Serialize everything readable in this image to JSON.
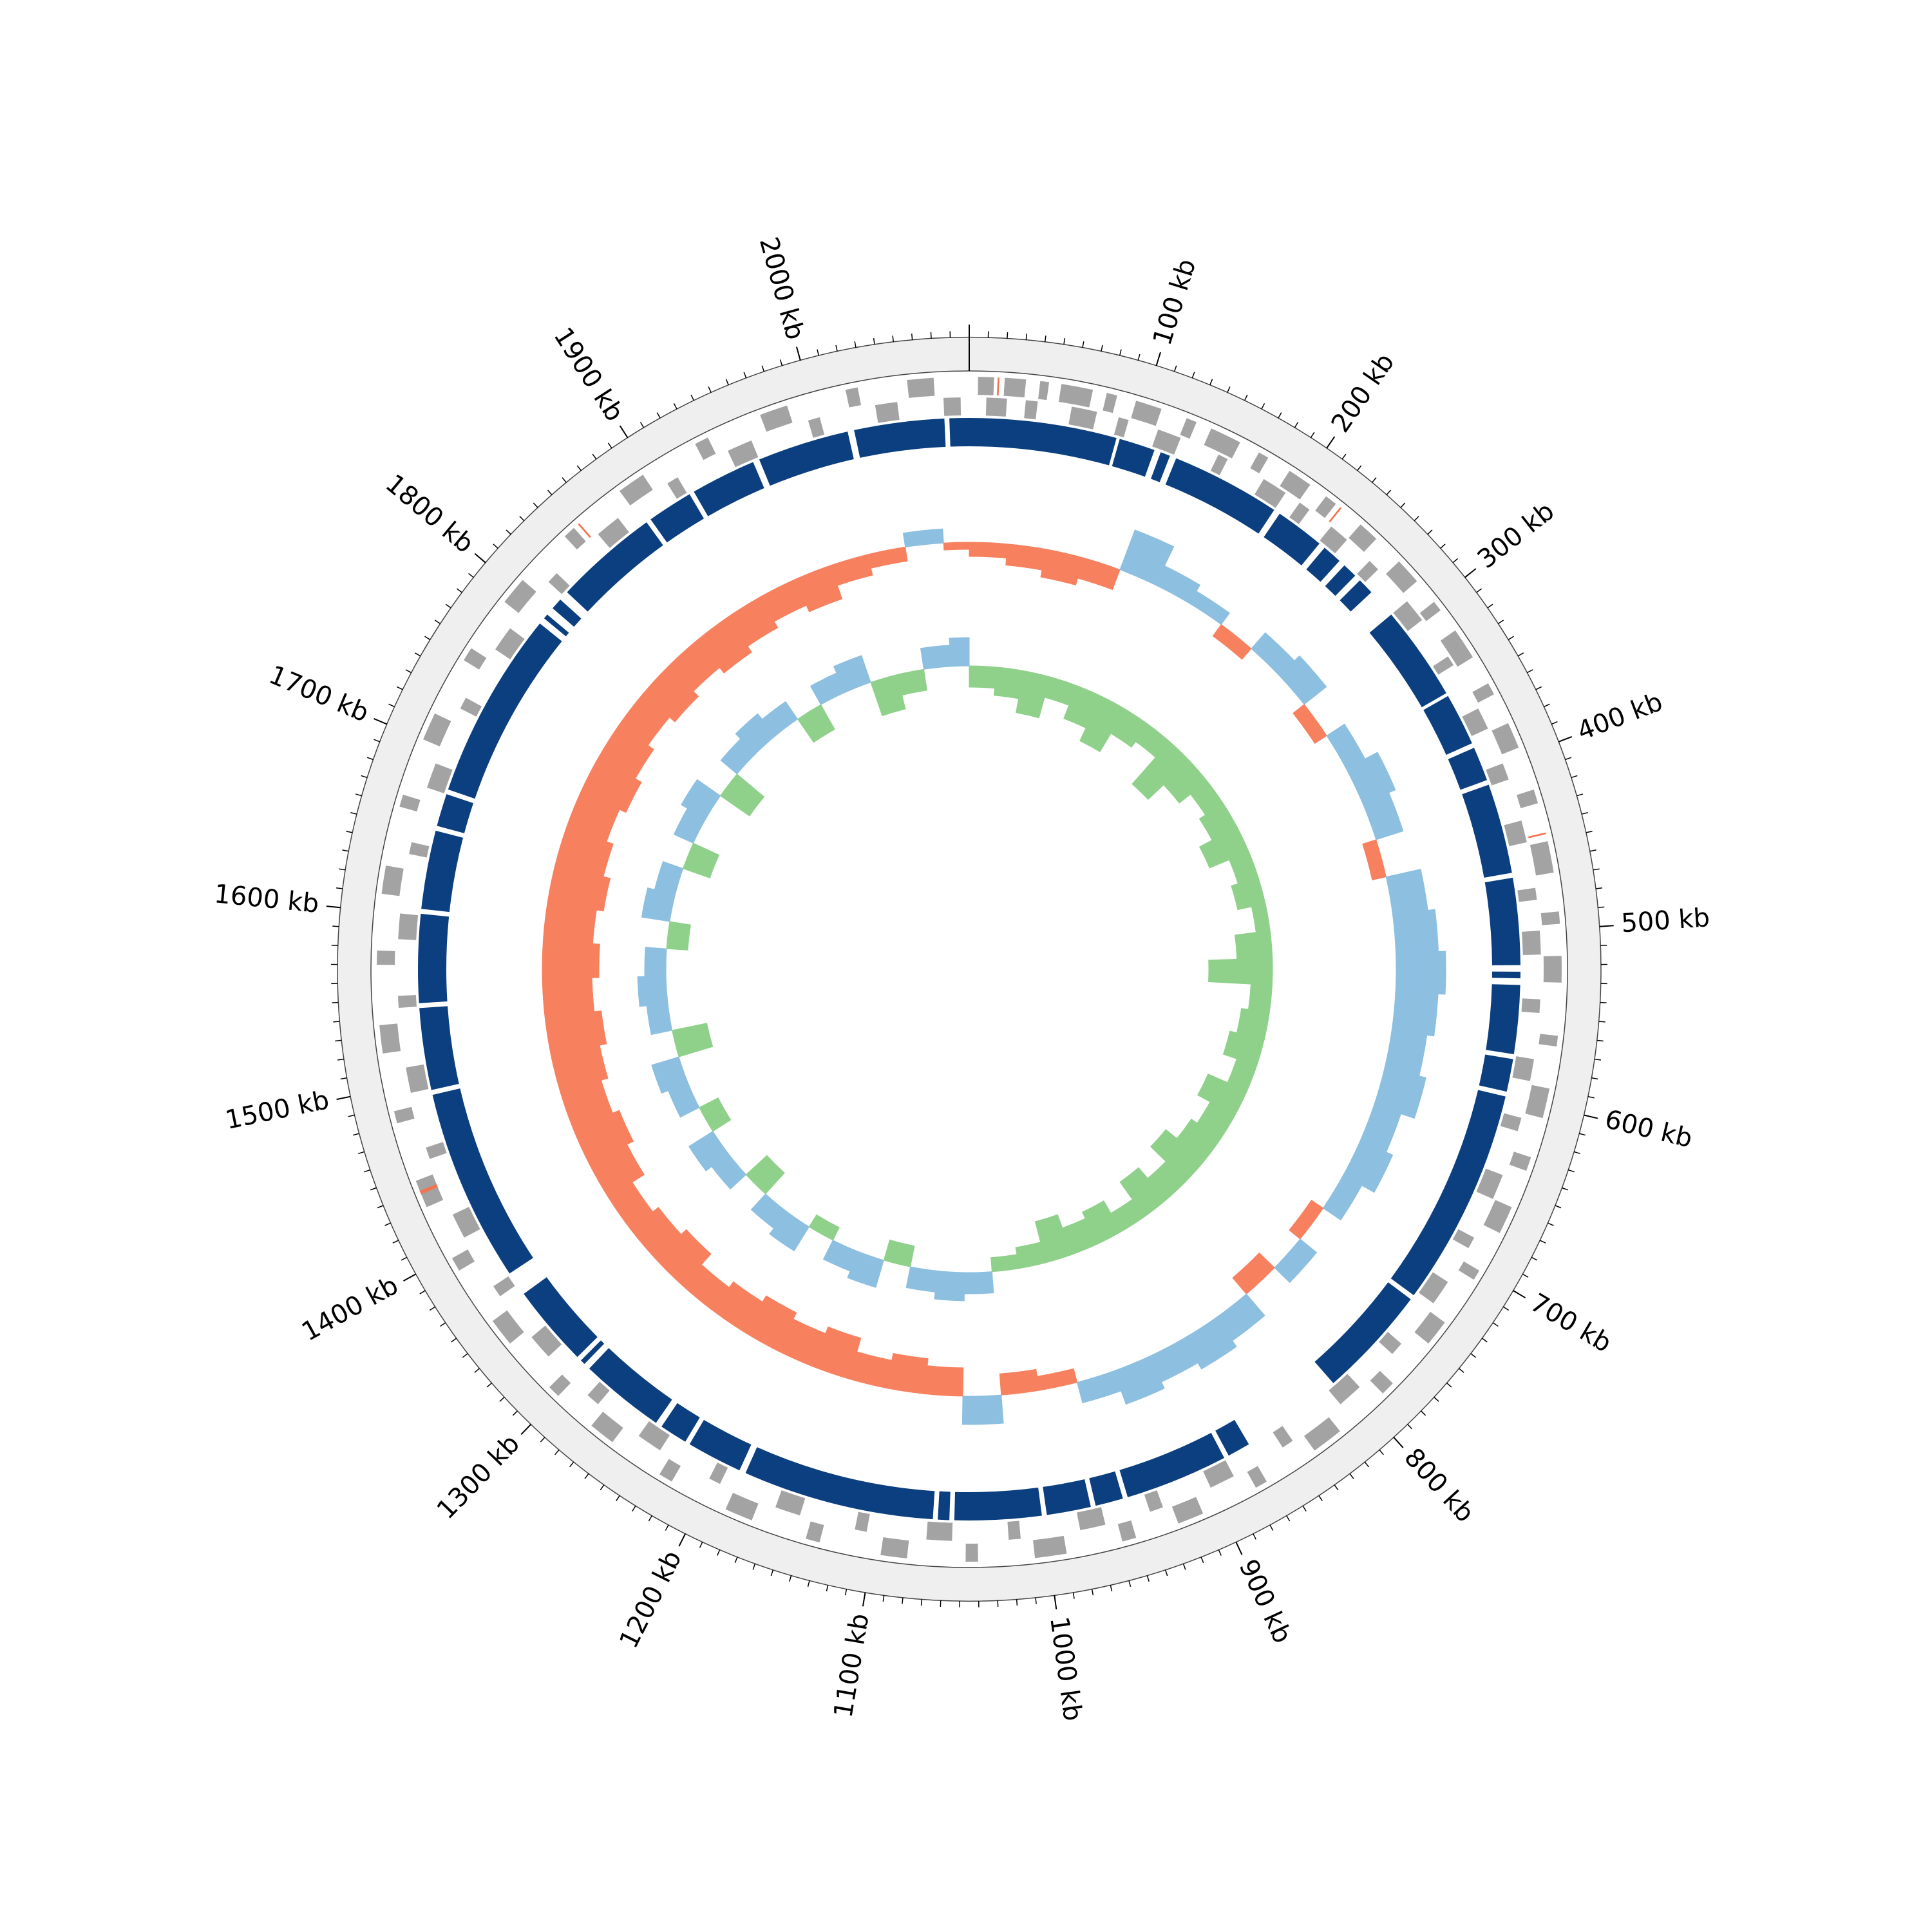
{
  "chart_data": {
    "type": "circos",
    "xlim": [
      0,
      2090
    ],
    "xticks": [
      {
        "value": 100,
        "label": "100 kb"
      },
      {
        "value": 200,
        "label": "200 kb"
      },
      {
        "value": 300,
        "label": "300 kb"
      },
      {
        "value": 400,
        "label": "400 kb"
      },
      {
        "value": 500,
        "label": "500 kb"
      },
      {
        "value": 600,
        "label": "600 kb"
      },
      {
        "value": 700,
        "label": "700 kb"
      },
      {
        "value": 800,
        "label": "800 kb"
      },
      {
        "value": 900,
        "label": "900 kb"
      },
      {
        "value": 1000,
        "label": "1000 kb"
      },
      {
        "value": 1100,
        "label": "1100 kb"
      },
      {
        "value": 1200,
        "label": "1200 kb"
      },
      {
        "value": 1300,
        "label": "1300 kb"
      },
      {
        "value": 1400,
        "label": "1400 kb"
      },
      {
        "value": 1500,
        "label": "1500 kb"
      },
      {
        "value": 1600,
        "label": "1600 kb"
      },
      {
        "value": 1700,
        "label": "1700 kb"
      },
      {
        "value": 1800,
        "label": "1800 kb"
      },
      {
        "value": 1900,
        "label": "1900 kb"
      },
      {
        "value": 2000,
        "label": "2000 kb"
      }
    ],
    "minor_tick_interval": 10,
    "tracks": [
      {
        "type": "features",
        "series": [
          {
            "color": "#a3a3a3",
            "features": [
              [
                5,
                14
              ],
              [
                20,
                32
              ],
              [
                40,
                45
              ],
              [
                52,
                70
              ],
              [
                78,
                84
              ],
              [
                95,
                110
              ],
              [
                125,
                131
              ],
              [
                140,
                158
              ],
              [
                170,
                176
              ],
              [
                190,
                204
              ],
              [
                215,
                222
              ],
              [
                240,
                252
              ],
              [
                270,
                285
              ],
              [
                300,
                306
              ],
              [
                320,
                338
              ],
              [
                355,
                362
              ],
              [
                380,
                395
              ],
              [
                420,
                428
              ],
              [
                450,
                468
              ],
              [
                490,
                497
              ],
              [
                515,
                530
              ],
              [
                560,
                566
              ],
              [
                590,
                607
              ],
              [
                630,
                638
              ],
              [
                660,
                676
              ],
              [
                700,
                706
              ],
              [
                735,
                750
              ],
              [
                780,
                788
              ],
              [
                820,
                838
              ],
              [
                870,
                877
              ],
              [
                910,
                925
              ],
              [
                950,
                958
              ],
              [
                990,
                1008
              ],
              [
                1040,
                1047
              ],
              [
                1080,
                1095
              ],
              [
                1130,
                1138
              ],
              [
                1170,
                1186
              ],
              [
                1220,
                1228
              ],
              [
                1260,
                1275
              ],
              [
                1300,
                1307
              ],
              [
                1340,
                1356
              ],
              [
                1390,
                1398
              ],
              [
                1430,
                1446
              ],
              [
                1480,
                1487
              ],
              [
                1520,
                1536
              ],
              [
                1570,
                1578
              ],
              [
                1610,
                1626
              ],
              [
                1660,
                1667
              ],
              [
                1700,
                1716
              ],
              [
                1750,
                1758
              ],
              [
                1790,
                1806
              ],
              [
                1840,
                1847
              ],
              [
                1880,
                1896
              ],
              [
                1930,
                1938
              ],
              [
                1970,
                1986
              ],
              [
                2020,
                2027
              ],
              [
                2055,
                2070
              ]
            ]
          },
          {
            "color": "#a3a3a3",
            "features": [
              [
                10,
                22
              ],
              [
                33,
                40
              ],
              [
                60,
                75
              ],
              [
                88,
                94
              ],
              [
                112,
                126
              ],
              [
                150,
                156
              ],
              [
                180,
                195
              ],
              [
                205,
                212
              ],
              [
                228,
                240
              ],
              [
                258,
                265
              ],
              [
                290,
                304
              ],
              [
                330,
                336
              ],
              [
                365,
                378
              ],
              [
                400,
                410
              ],
              [
                435,
                448
              ],
              [
                475,
                482
              ],
              [
                500,
                514
              ],
              [
                540,
                548
              ],
              [
                575,
                588
              ],
              [
                610,
                618
              ],
              [
                645,
                660
              ],
              [
                685,
                692
              ],
              [
                715,
                730
              ],
              [
                760,
                768
              ],
              [
                795,
                810
              ],
              [
                845,
                852
              ],
              [
                885,
                900
              ],
              [
                930,
                938
              ],
              [
                965,
                980
              ],
              [
                1015,
                1022
              ],
              [
                1055,
                1070
              ],
              [
                1105,
                1112
              ],
              [
                1145,
                1160
              ],
              [
                1195,
                1202
              ],
              [
                1235,
                1250
              ],
              [
                1280,
                1288
              ],
              [
                1320,
                1335
              ],
              [
                1365,
                1372
              ],
              [
                1405,
                1420
              ],
              [
                1455,
                1462
              ],
              [
                1495,
                1510
              ],
              [
                1545,
                1552
              ],
              [
                1585,
                1600
              ],
              [
                1635,
                1642
              ],
              [
                1675,
                1690
              ],
              [
                1725,
                1732
              ],
              [
                1765,
                1780
              ],
              [
                1815,
                1822
              ],
              [
                1855,
                1870
              ],
              [
                1905,
                1912
              ],
              [
                1945,
                1960
              ],
              [
                1995,
                2002
              ],
              [
                2035,
                2048
              ],
              [
                2075,
                2085
              ]
            ]
          },
          {
            "color": "#f4734f",
            "features": [
              [
                16,
                17
              ],
              [
                225,
                226
              ],
              [
                445,
                446
              ],
              [
                1438,
                1440
              ],
              [
                1850,
                1851
              ]
            ]
          }
        ]
      },
      {
        "type": "blocks",
        "color": "#0b3f7f",
        "blocks": [
          [
            0,
            90
          ],
          [
            92,
            114
          ],
          [
            118,
            124
          ],
          [
            128,
            195
          ],
          [
            199,
            229
          ],
          [
            233,
            245
          ],
          [
            249,
            258
          ],
          [
            262,
            272
          ],
          [
            290,
            348
          ],
          [
            350,
            382
          ],
          [
            385,
            406
          ],
          [
            409,
            464
          ],
          [
            467,
            520
          ],
          [
            524,
            528
          ],
          [
            532,
            574
          ],
          [
            577,
            597
          ],
          [
            600,
            733
          ],
          [
            736,
            805
          ],
          [
            868,
            882
          ],
          [
            885,
            948
          ],
          [
            951,
            968
          ],
          [
            971,
            998
          ],
          [
            1001,
            1054
          ],
          [
            1057,
            1064
          ],
          [
            1067,
            1184
          ],
          [
            1188,
            1222
          ],
          [
            1225,
            1242
          ],
          [
            1246,
            1298
          ],
          [
            1302,
            1305
          ],
          [
            1308,
            1358
          ],
          [
            1373,
            1491
          ],
          [
            1494,
            1544
          ],
          [
            1547,
            1601
          ],
          [
            1604,
            1652
          ],
          [
            1655,
            1675
          ],
          [
            1678,
            1793
          ],
          [
            1797,
            1800
          ],
          [
            1805,
            1812
          ],
          [
            1818,
            1882
          ],
          [
            1885,
            1913
          ],
          [
            1916,
            1956
          ],
          [
            1960,
            2016
          ],
          [
            2020,
            2075
          ],
          [
            2078,
            2090
          ]
        ]
      },
      {
        "type": "bars",
        "color_above": "#8cbfe0",
        "color_below": "#f7805f",
        "ylim": [
          -10,
          10
        ],
        "x": [
          0,
          30,
          60,
          90,
          120,
          150,
          180,
          210,
          240,
          270,
          300,
          330,
          360,
          390,
          420,
          450,
          480,
          510,
          540,
          570,
          600,
          630,
          660,
          690,
          720,
          750,
          780,
          810,
          840,
          870,
          900,
          930,
          960,
          990,
          1020,
          1050,
          1080,
          1110,
          1140,
          1170,
          1200,
          1230,
          1260,
          1290,
          1320,
          1350,
          1380,
          1410,
          1440,
          1470,
          1500,
          1530,
          1560,
          1590,
          1620,
          1650,
          1680,
          1710,
          1740,
          1770,
          1800,
          1830,
          1860,
          1890,
          1920,
          1950,
          1980,
          2010,
          2040,
          2070
        ],
        "values": [
          -2,
          -3,
          -4,
          -3,
          6,
          3,
          2,
          -2,
          3,
          4,
          -2,
          3,
          5,
          4,
          -2,
          5,
          6,
          7,
          6,
          5,
          6,
          4,
          5,
          3,
          -2,
          3,
          -3,
          4,
          5,
          4,
          5,
          3,
          -2,
          -3,
          4,
          -4,
          -5,
          -4,
          -6,
          -5,
          -6,
          -5,
          -4,
          -6,
          -5,
          -4,
          -6,
          -7,
          -6,
          -7,
          -8,
          -7,
          -8,
          -7,
          -8,
          -7,
          -6,
          -7,
          -6,
          -5,
          -6,
          -5,
          -6,
          -5,
          -4,
          -5,
          -3,
          -2,
          2,
          -1
        ]
      },
      {
        "type": "bars",
        "color_above": "#8cbfe0",
        "color_below": "#8fd18a",
        "ylim": [
          -10,
          10
        ],
        "x": [
          0,
          30,
          60,
          90,
          120,
          150,
          180,
          210,
          240,
          270,
          300,
          330,
          360,
          390,
          420,
          450,
          480,
          510,
          540,
          570,
          600,
          630,
          660,
          690,
          720,
          750,
          780,
          810,
          840,
          870,
          900,
          930,
          960,
          990,
          1020,
          1050,
          1080,
          1110,
          1140,
          1170,
          1200,
          1230,
          1260,
          1290,
          1320,
          1350,
          1380,
          1410,
          1440,
          1470,
          1500,
          1530,
          1560,
          1590,
          1620,
          1650,
          1680,
          1710,
          1740,
          1770,
          1800,
          1830,
          1860,
          1890,
          1920,
          1950,
          1980,
          2010,
          2040,
          2070
        ],
        "values": [
          -3,
          -4,
          -6,
          -3,
          -5,
          -7,
          -4,
          -3,
          -8,
          -5,
          -3,
          -4,
          -6,
          -3,
          -4,
          -2,
          -5,
          -9,
          -3,
          -4,
          -5,
          -3,
          -6,
          -4,
          -5,
          -7,
          -4,
          -6,
          -3,
          -5,
          -4,
          -6,
          -3,
          -2,
          3,
          4,
          3,
          -3,
          4,
          3,
          -2,
          4,
          3,
          -4,
          3,
          4,
          -3,
          3,
          4,
          -5,
          3,
          4,
          3,
          -3,
          4,
          3,
          -4,
          3,
          4,
          -5,
          3,
          4,
          3,
          -4,
          3,
          4,
          -5,
          -3,
          3,
          4
        ]
      }
    ]
  }
}
